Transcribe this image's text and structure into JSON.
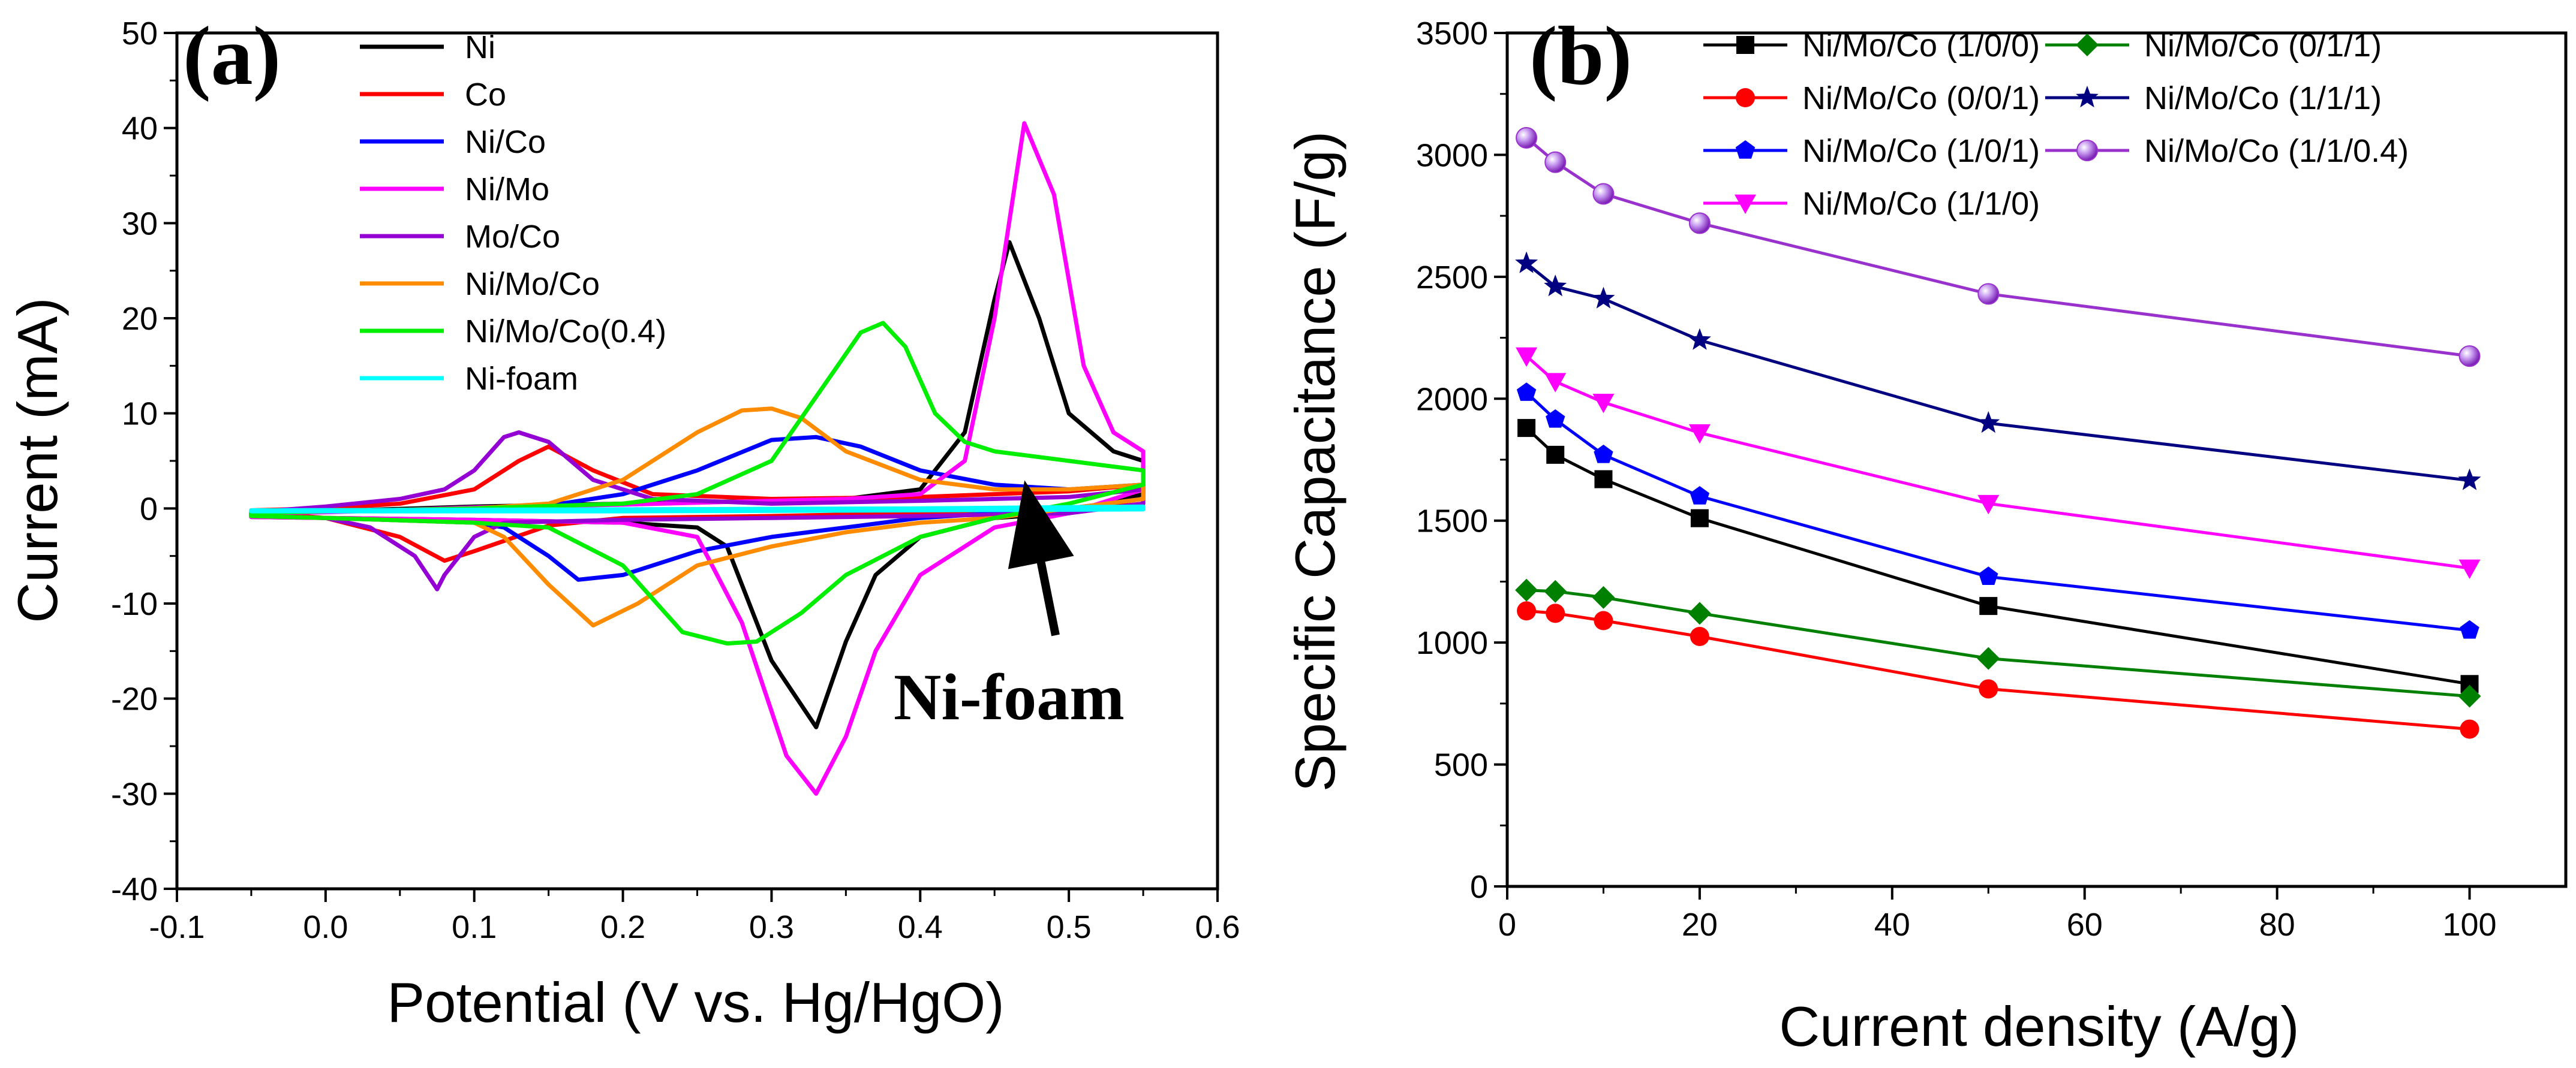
{
  "chart_data": [
    {
      "panel": "(a)",
      "type": "line",
      "xlabel": "Potential (V vs. Hg/HgO)",
      "ylabel": "Current (mA)",
      "xlim": [
        -0.1,
        0.6
      ],
      "ylim": [
        -40,
        50
      ],
      "xticks": [
        -0.1,
        0.0,
        0.1,
        0.2,
        0.3,
        0.4,
        0.5,
        0.6
      ],
      "xtick_labels": [
        "-0.1",
        "0.0",
        "0.1",
        "0.2",
        "0.3",
        "0.4",
        "0.5",
        "0.6"
      ],
      "yticks": [
        -40,
        -30,
        -20,
        -10,
        0,
        10,
        20,
        30,
        40,
        50
      ],
      "ytick_labels": [
        "-40",
        "-30",
        "-20",
        "-10",
        "0",
        "10",
        "20",
        "30",
        "40",
        "50"
      ],
      "annotation": {
        "text": "Ni-foam",
        "arrow_to": [
          0.468,
          0
        ]
      },
      "series": [
        {
          "name": "Ni",
          "color": "#000000",
          "x": [
            -0.05,
            0.0,
            0.1,
            0.2,
            0.3,
            0.35,
            0.4,
            0.43,
            0.45,
            0.46,
            0.48,
            0.5,
            0.53,
            0.55,
            0.55,
            0.5,
            0.45,
            0.4,
            0.37,
            0.35,
            0.33,
            0.3,
            0.27,
            0.25,
            0.2,
            0.1,
            0.0,
            -0.05
          ],
          "y": [
            -0.4,
            -0.3,
            0.2,
            0.5,
            0.8,
            1.0,
            2.0,
            8.0,
            22.0,
            28.0,
            20.0,
            10.0,
            6.0,
            5.0,
            1.5,
            -0.5,
            -1.0,
            -3.0,
            -7.0,
            -14.0,
            -23.0,
            -16.0,
            -4.0,
            -2.0,
            -1.5,
            -1.2,
            -1.0,
            -0.9
          ]
        },
        {
          "name": "Co",
          "color": "#ff0000",
          "x": [
            -0.05,
            0.0,
            0.05,
            0.1,
            0.13,
            0.15,
            0.18,
            0.22,
            0.3,
            0.4,
            0.5,
            0.55,
            0.55,
            0.5,
            0.4,
            0.3,
            0.2,
            0.15,
            0.1,
            0.08,
            0.05,
            0.0,
            -0.05
          ],
          "y": [
            -0.2,
            0.0,
            0.5,
            2.0,
            5.0,
            6.5,
            4.0,
            1.5,
            1.0,
            1.2,
            1.8,
            2.5,
            0.5,
            -0.3,
            -0.5,
            -0.8,
            -1.0,
            -1.8,
            -4.5,
            -5.5,
            -3.0,
            -1.0,
            -0.4
          ]
        },
        {
          "name": "Ni/Co",
          "color": "#0000ff",
          "x": [
            -0.05,
            0.0,
            0.1,
            0.15,
            0.2,
            0.25,
            0.3,
            0.33,
            0.36,
            0.4,
            0.45,
            0.5,
            0.55,
            0.55,
            0.5,
            0.45,
            0.4,
            0.35,
            0.3,
            0.25,
            0.2,
            0.17,
            0.15,
            0.12,
            0.1,
            0.0,
            -0.05
          ],
          "y": [
            -0.5,
            -0.3,
            0.0,
            0.3,
            1.5,
            4.0,
            7.2,
            7.5,
            6.5,
            4.0,
            2.5,
            2.0,
            2.5,
            1.0,
            0.0,
            -0.5,
            -1.0,
            -2.0,
            -3.0,
            -4.5,
            -7.0,
            -7.5,
            -5.0,
            -2.0,
            -1.5,
            -1.0,
            -0.8
          ]
        },
        {
          "name": "Ni/Mo",
          "color": "#ff00ff",
          "x": [
            -0.05,
            0.0,
            0.1,
            0.2,
            0.3,
            0.35,
            0.4,
            0.43,
            0.45,
            0.47,
            0.49,
            0.51,
            0.53,
            0.55,
            0.55,
            0.5,
            0.45,
            0.4,
            0.37,
            0.35,
            0.33,
            0.31,
            0.28,
            0.25,
            0.2,
            0.1,
            0.0,
            -0.05
          ],
          "y": [
            -0.5,
            -0.4,
            0.1,
            0.4,
            0.8,
            1.0,
            1.5,
            5.0,
            20.0,
            40.5,
            33.0,
            15.0,
            8.0,
            6.0,
            2.0,
            -0.5,
            -2.0,
            -7.0,
            -15.0,
            -24.0,
            -30.0,
            -26.0,
            -12.0,
            -3.0,
            -1.5,
            -1.2,
            -1.0,
            -0.9
          ]
        },
        {
          "name": "Mo/Co",
          "color": "#9400d3",
          "x": [
            -0.05,
            0.0,
            0.05,
            0.08,
            0.1,
            0.12,
            0.13,
            0.15,
            0.18,
            0.22,
            0.3,
            0.4,
            0.5,
            0.55,
            0.55,
            0.5,
            0.4,
            0.3,
            0.2,
            0.12,
            0.1,
            0.08,
            0.075,
            0.06,
            0.03,
            0.0,
            -0.05
          ],
          "y": [
            -0.4,
            0.2,
            1.0,
            2.0,
            4.0,
            7.5,
            8.0,
            7.0,
            3.0,
            1.0,
            0.5,
            0.8,
            1.2,
            2.0,
            0.5,
            -0.5,
            -0.8,
            -1.0,
            -1.2,
            -1.5,
            -3.0,
            -7.0,
            -8.5,
            -5.0,
            -2.0,
            -1.0,
            -0.8
          ]
        },
        {
          "name": "Ni/Mo/Co",
          "color": "#ff8c00",
          "x": [
            -0.05,
            0.0,
            0.1,
            0.15,
            0.2,
            0.25,
            0.28,
            0.3,
            0.32,
            0.35,
            0.4,
            0.45,
            0.5,
            0.55,
            0.55,
            0.5,
            0.45,
            0.4,
            0.35,
            0.3,
            0.25,
            0.21,
            0.18,
            0.15,
            0.12,
            0.1,
            0.0,
            -0.05
          ],
          "y": [
            -0.5,
            -0.3,
            0.0,
            0.5,
            3.0,
            8.0,
            10.3,
            10.5,
            9.5,
            6.0,
            3.0,
            2.0,
            2.0,
            2.5,
            1.0,
            0.0,
            -1.0,
            -1.5,
            -2.5,
            -4.0,
            -6.0,
            -10.0,
            -12.3,
            -8.0,
            -3.0,
            -1.5,
            -1.0,
            -0.8
          ]
        },
        {
          "name": "Ni/Mo/Co(0.4)",
          "color": "#00ee00",
          "x": [
            -0.05,
            0.0,
            0.1,
            0.2,
            0.25,
            0.3,
            0.34,
            0.36,
            0.375,
            0.39,
            0.41,
            0.43,
            0.45,
            0.5,
            0.55,
            0.55,
            0.5,
            0.45,
            0.4,
            0.35,
            0.32,
            0.29,
            0.27,
            0.24,
            0.2,
            0.15,
            0.1,
            0.0,
            -0.05
          ],
          "y": [
            -0.5,
            -0.3,
            0.0,
            0.5,
            1.5,
            5.0,
            14.0,
            18.5,
            19.5,
            17.0,
            10.0,
            7.0,
            6.0,
            5.0,
            4.0,
            2.5,
            0.5,
            -1.0,
            -3.0,
            -7.0,
            -11.0,
            -14.0,
            -14.2,
            -13.0,
            -6.0,
            -2.0,
            -1.5,
            -1.0,
            -0.8
          ]
        },
        {
          "name": "Ni-foam",
          "color": "#00ffff",
          "x": [
            -0.05,
            0.2,
            0.4,
            0.55,
            0.55,
            0.4,
            0.2,
            -0.05
          ],
          "y": [
            -0.2,
            -0.1,
            0.0,
            0.2,
            -0.1,
            -0.2,
            -0.3,
            -0.3
          ]
        }
      ]
    },
    {
      "panel": "(b)",
      "type": "line",
      "xlabel": "Current density (A/g)",
      "ylabel": "Specific Capacitance (F/g)",
      "xlim": [
        0,
        110
      ],
      "ylim": [
        0,
        3500
      ],
      "xticks": [
        0,
        20,
        40,
        60,
        80,
        100
      ],
      "xtick_labels": [
        "0",
        "20",
        "40",
        "60",
        "80",
        "100"
      ],
      "yticks": [
        0,
        500,
        1000,
        1500,
        2000,
        2500,
        3000,
        3500
      ],
      "ytick_labels": [
        "0",
        "500",
        "1000",
        "1500",
        "2000",
        "2500",
        "3000",
        "3500"
      ],
      "x": [
        2,
        5,
        10,
        20,
        50,
        100
      ],
      "series": [
        {
          "name": "Ni/Mo/Co (1/0/0)",
          "color": "#000000",
          "marker": "square",
          "values": [
            1880,
            1770,
            1670,
            1510,
            1150,
            830
          ]
        },
        {
          "name": "Ni/Mo/Co (0/0/1)",
          "color": "#ff0000",
          "marker": "circle",
          "values": [
            1130,
            1120,
            1090,
            1025,
            810,
            645
          ]
        },
        {
          "name": "Ni/Mo/Co (1/0/1)",
          "color": "#0000ff",
          "marker": "pentagon",
          "values": [
            2025,
            1915,
            1770,
            1600,
            1270,
            1050
          ]
        },
        {
          "name": "Ni/Mo/Co (1/1/0)",
          "color": "#ff00ff",
          "marker": "triangle-down",
          "values": [
            2175,
            2070,
            1985,
            1860,
            1570,
            1305
          ]
        },
        {
          "name": "Ni/Mo/Co (0/1/1)",
          "color": "#008000",
          "marker": "diamond",
          "values": [
            1215,
            1210,
            1185,
            1120,
            935,
            780
          ]
        },
        {
          "name": "Ni/Mo/Co (1/1/1)",
          "color": "#000080",
          "marker": "star",
          "values": [
            2555,
            2460,
            2410,
            2240,
            1900,
            1665
          ]
        },
        {
          "name": "Ni/Mo/Co (1/1/0.4)",
          "color": "#9932cc",
          "marker": "sphere",
          "values": [
            3070,
            2970,
            2840,
            2720,
            2430,
            2175
          ]
        }
      ]
    }
  ]
}
